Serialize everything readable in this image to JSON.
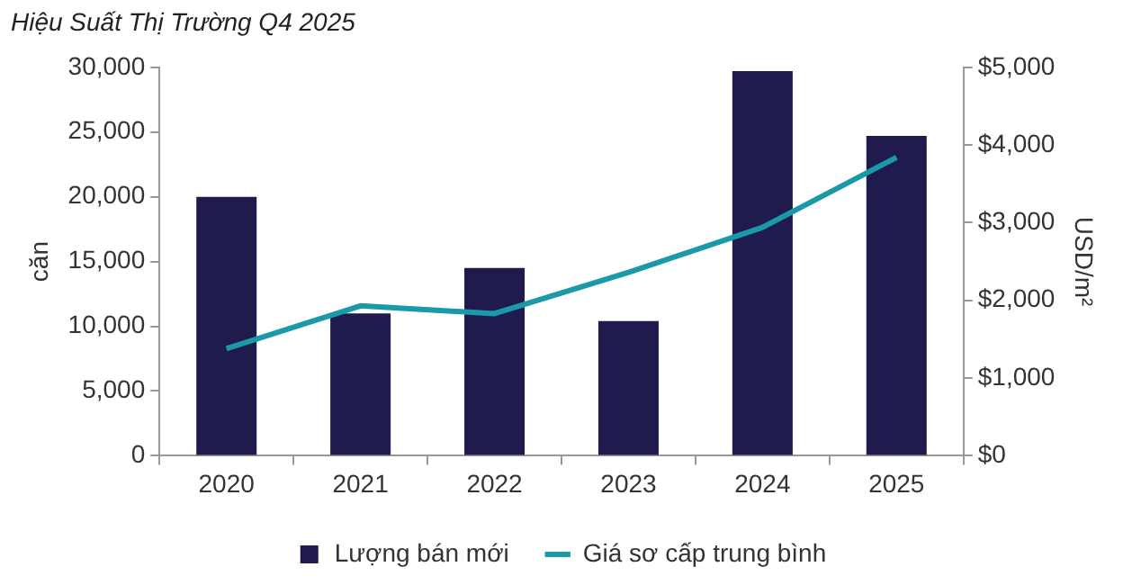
{
  "chart_data": {
    "type": "bar",
    "title": "Hiệu Suất Thị Trường Q4 2025",
    "ylabel": "căn",
    "y2label": "USD/m²",
    "categories": [
      "2020",
      "2021",
      "2022",
      "2023",
      "2024",
      "2025"
    ],
    "series": [
      {
        "name": "Lượng bán mới",
        "color": "#1f1b4d",
        "values": [
          20000,
          11000,
          14500,
          10400,
          29700,
          24700
        ]
      },
      {
        "name": "Giá sơ cấp trung bình",
        "type": "line",
        "axis": "y2",
        "color": "#1a9aa8",
        "values": [
          1380,
          1930,
          1830,
          2360,
          2940,
          3840
        ]
      }
    ],
    "ylim": [
      0,
      30000
    ],
    "yticks": [
      {
        "value": 0,
        "label": "0"
      },
      {
        "value": 5000,
        "label": "5,000"
      },
      {
        "value": 10000,
        "label": "10,000"
      },
      {
        "value": 15000,
        "label": "15,000"
      },
      {
        "value": 20000,
        "label": "20,000"
      },
      {
        "value": 25000,
        "label": "25,000"
      },
      {
        "value": 30000,
        "label": "30,000"
      }
    ],
    "y2lim": [
      0,
      5000
    ],
    "y2ticks": [
      {
        "value": 0,
        "label": "$0"
      },
      {
        "value": 1000,
        "label": "$1,000"
      },
      {
        "value": 2000,
        "label": "$2,000"
      },
      {
        "value": 3000,
        "label": "$3,000"
      },
      {
        "value": 4000,
        "label": "$4,000"
      },
      {
        "value": 5000,
        "label": "$5,000"
      }
    ],
    "grid": false,
    "legend": "bottom",
    "marker": "none",
    "line_style": "solid"
  }
}
